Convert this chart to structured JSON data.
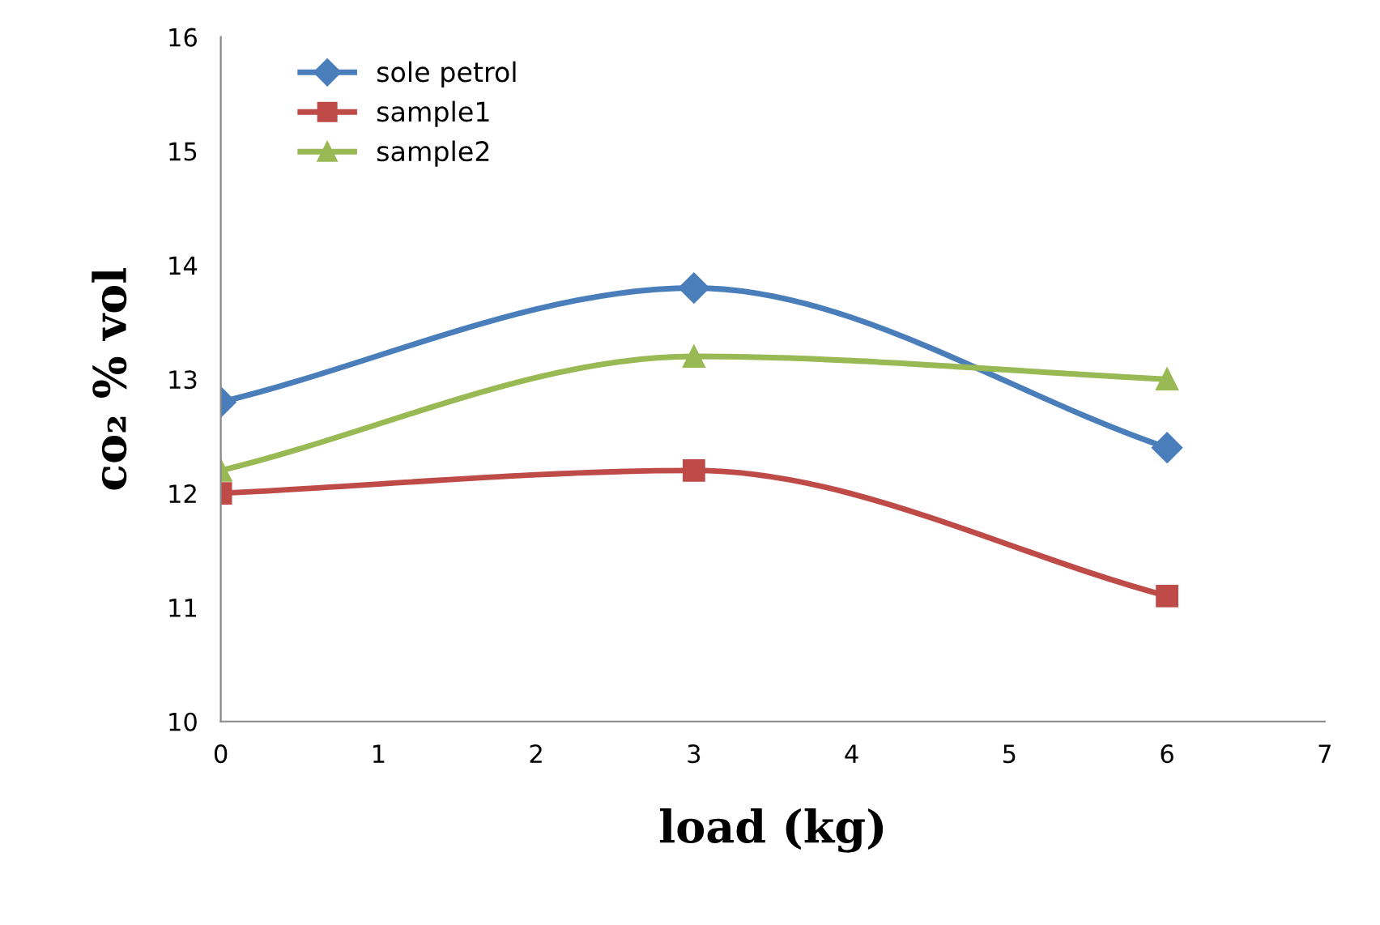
{
  "chart_data": {
    "type": "line",
    "xlabel": "load (kg)",
    "ylabel": "co₂ % vol",
    "x": [
      0,
      3,
      6
    ],
    "series": [
      {
        "name": "sole petrol",
        "color": "#4a7ebb",
        "marker": "diamond",
        "values": [
          12.8,
          13.8,
          12.4
        ]
      },
      {
        "name": "sample1",
        "color": "#be4b48",
        "marker": "square",
        "values": [
          12.0,
          12.2,
          11.1
        ]
      },
      {
        "name": "sample2",
        "color": "#98b954",
        "marker": "triangle",
        "values": [
          12.2,
          13.2,
          13.0
        ]
      }
    ],
    "xlim": [
      0,
      7
    ],
    "xticks": [
      0,
      1,
      2,
      3,
      4,
      5,
      6,
      7
    ],
    "ylim": [
      10,
      16
    ],
    "yticks": [
      10,
      11,
      12,
      13,
      14,
      15,
      16
    ],
    "grid": false,
    "legend": "top left",
    "line_style": "solid"
  }
}
